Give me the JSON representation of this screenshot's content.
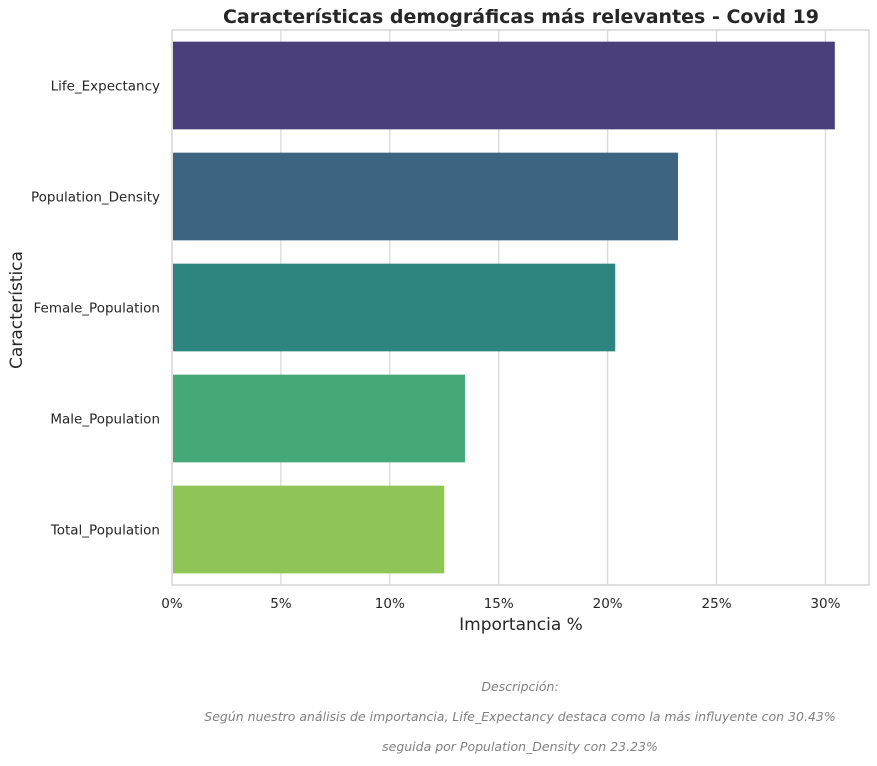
{
  "chart_data": {
    "type": "bar",
    "orientation": "horizontal",
    "title": "Características demográficas más relevantes - Covid 19",
    "xlabel": "Importancia %",
    "ylabel": "Característica",
    "categories": [
      "Life_Expectancy",
      "Population_Density",
      "Female_Population",
      "Male_Population",
      "Total_Population"
    ],
    "values": [
      30.43,
      23.23,
      20.35,
      13.45,
      12.5
    ],
    "xlim": [
      0,
      32
    ],
    "xticks": [
      0,
      5,
      10,
      15,
      20,
      25,
      30
    ],
    "xtick_labels": [
      "0%",
      "5%",
      "10%",
      "15%",
      "20%",
      "25%",
      "30%"
    ],
    "colors": [
      "#4a3f7a",
      "#3d6581",
      "#2e847f",
      "#45a877",
      "#8ec556"
    ],
    "grid": true
  },
  "description": {
    "heading": "Descripción:",
    "line1": "Según nuestro análisis de importancia, Life_Expectancy destaca como la más influyente con 30.43%",
    "line2": "seguida por Population_Density con 23.23%"
  }
}
